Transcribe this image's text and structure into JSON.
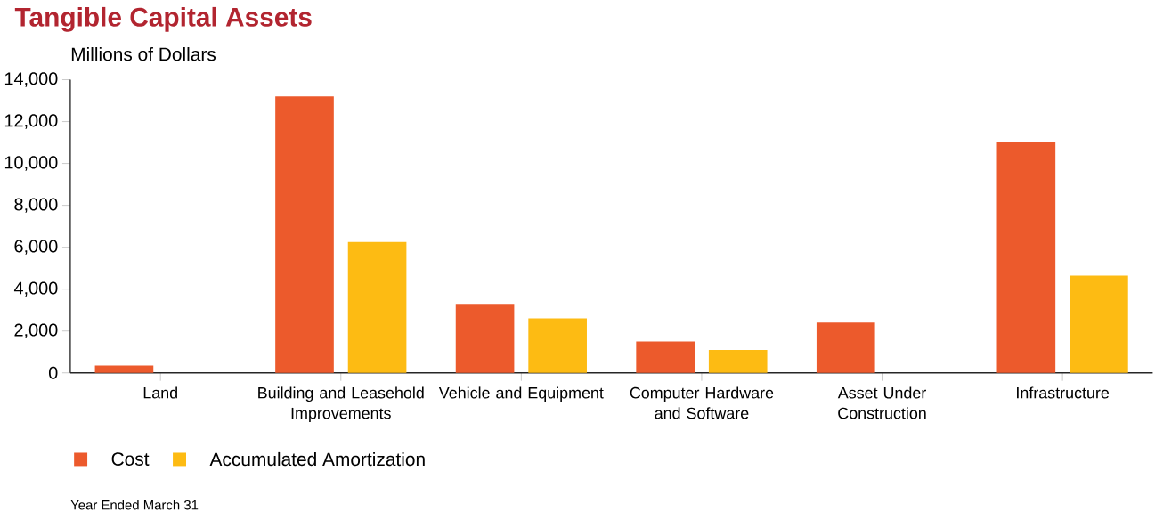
{
  "chart_data": {
    "type": "bar",
    "title": "Tangible Capital Assets",
    "ylabel": "Millions of Dollars",
    "categories": [
      "Land",
      "Building and Leasehold Improvements",
      "Vehicle and Equipment",
      "Computer Hardware and Software",
      "Asset Under Construction",
      "Infrastructure"
    ],
    "series": [
      {
        "name": "Cost",
        "color": "#ec5a2c",
        "values": [
          350,
          13200,
          3300,
          1500,
          2400,
          11050
        ]
      },
      {
        "name": "Accumulated Amortization",
        "color": "#fdbb13",
        "values": [
          0,
          6250,
          2600,
          1100,
          0,
          4650
        ]
      }
    ],
    "ylim": [
      0,
      14000
    ],
    "yticks": [
      0,
      {
        "value": 2000,
        "label": "2,000"
      },
      {
        "value": 4000,
        "label": "4,000"
      },
      {
        "value": 6000,
        "label": "6,000"
      },
      {
        "value": 8000,
        "label": "8,000"
      },
      {
        "value": 10000,
        "label": "10,000"
      },
      {
        "value": 12000,
        "label": "12,000"
      },
      {
        "value": 14000,
        "label": "14,000"
      }
    ],
    "legend": "bottom",
    "grid": false,
    "annotations": [
      "Year Ended March 31"
    ]
  }
}
